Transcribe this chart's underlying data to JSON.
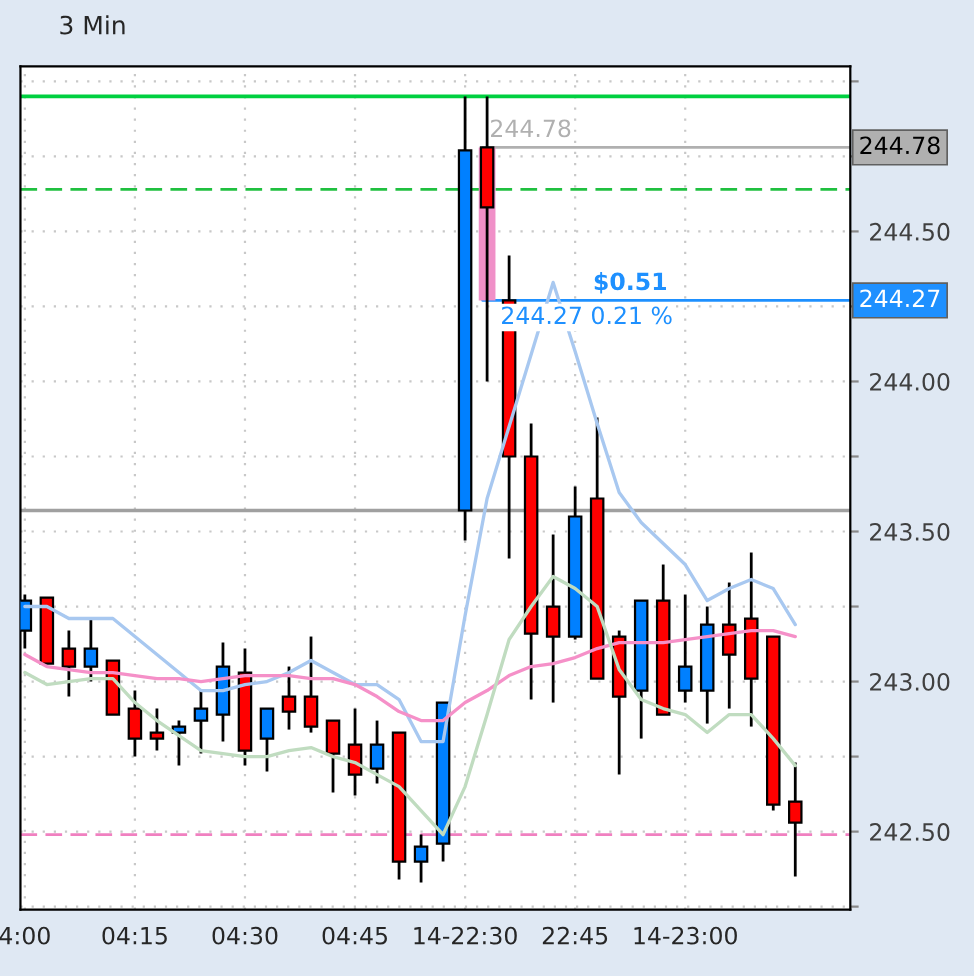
{
  "chart_data": {
    "type": "candlestick",
    "title": "3 Min",
    "categories": [
      "4:00",
      null,
      null,
      null,
      null,
      "04:15",
      null,
      null,
      null,
      null,
      "04:30",
      null,
      null,
      null,
      null,
      "04:45",
      null,
      null,
      null,
      null,
      "14-22:30",
      null,
      null,
      null,
      null,
      "22:45",
      null,
      null,
      null,
      null,
      "14-23:00",
      null,
      null,
      null,
      null,
      null
    ],
    "ohlc": [
      [
        243.17,
        243.29,
        243.11,
        243.27
      ],
      [
        243.28,
        243.28,
        243.06,
        243.06
      ],
      [
        243.11,
        243.17,
        242.95,
        243.05
      ],
      [
        243.05,
        243.21,
        243.0,
        243.11
      ],
      [
        243.07,
        243.07,
        242.89,
        242.89
      ],
      [
        242.91,
        242.97,
        242.75,
        242.81
      ],
      [
        242.83,
        242.91,
        242.77,
        242.81
      ],
      [
        242.83,
        242.87,
        242.72,
        242.85
      ],
      [
        242.87,
        242.97,
        242.76,
        242.91
      ],
      [
        242.89,
        243.13,
        242.8,
        243.05
      ],
      [
        243.03,
        243.11,
        242.72,
        242.77
      ],
      [
        242.81,
        242.91,
        242.7,
        242.91
      ],
      [
        242.95,
        243.05,
        242.84,
        242.9
      ],
      [
        242.95,
        243.15,
        242.83,
        242.85
      ],
      [
        242.87,
        242.87,
        242.63,
        242.76
      ],
      [
        242.79,
        242.91,
        242.62,
        242.69
      ],
      [
        242.71,
        242.87,
        242.66,
        242.79
      ],
      [
        242.83,
        242.83,
        242.34,
        242.4
      ],
      [
        242.4,
        242.49,
        242.33,
        242.45
      ],
      [
        242.46,
        242.93,
        242.4,
        242.93
      ],
      [
        243.57,
        244.95,
        243.47,
        244.77
      ],
      [
        244.78,
        244.95,
        244.0,
        244.58
      ],
      [
        244.27,
        244.42,
        243.41,
        243.75
      ],
      [
        243.75,
        243.86,
        242.94,
        243.16
      ],
      [
        243.25,
        243.49,
        242.93,
        243.15
      ],
      [
        243.15,
        243.65,
        243.14,
        243.55
      ],
      [
        243.61,
        243.88,
        243.01,
        243.01
      ],
      [
        243.15,
        243.17,
        242.69,
        242.95
      ],
      [
        242.97,
        243.27,
        242.81,
        243.27
      ],
      [
        243.27,
        243.39,
        242.89,
        242.89
      ],
      [
        242.97,
        243.29,
        242.93,
        243.05
      ],
      [
        242.97,
        243.25,
        242.86,
        243.19
      ],
      [
        243.19,
        243.33,
        242.91,
        243.09
      ],
      [
        243.21,
        243.43,
        242.85,
        243.01
      ],
      [
        243.15,
        243.15,
        242.57,
        242.59
      ],
      [
        242.6,
        242.73,
        242.35,
        242.53
      ]
    ],
    "colors": [
      "#0080ff",
      "#ff0000",
      "#ff0000",
      "#0080ff",
      "#ff0000",
      "#ff0000",
      "#ff0000",
      "#0080ff",
      "#0080ff",
      "#0080ff",
      "#ff0000",
      "#0080ff",
      "#ff0000",
      "#ff0000",
      "#ff0000",
      "#ff0000",
      "#0080ff",
      "#ff0000",
      "#0080ff",
      "#0080ff",
      "#0080ff",
      "#ff0000",
      "#ff0000",
      "#ff0000",
      "#ff0000",
      "#0080ff",
      "#ff0000",
      "#ff0000",
      "#0080ff",
      "#ff0000",
      "#0080ff",
      "#0080ff",
      "#ff0000",
      "#ff0000",
      "#ff0000",
      "#ff0000"
    ],
    "series": [
      {
        "type": "line",
        "color": "#a8c8f0",
        "values": [
          243.25,
          243.25,
          243.21,
          243.21,
          243.21,
          243.15,
          243.09,
          243.03,
          242.97,
          242.97,
          242.99,
          243.0,
          243.03,
          243.07,
          243.03,
          242.99,
          242.99,
          242.94,
          242.8,
          242.8,
          243.22,
          243.61,
          243.85,
          244.09,
          244.33,
          244.1,
          243.86,
          243.63,
          243.53,
          243.46,
          243.39,
          243.27,
          243.31,
          243.34,
          243.31,
          243.19
        ]
      },
      {
        "type": "line",
        "color": "#f590c8",
        "values": [
          243.09,
          243.05,
          243.04,
          243.03,
          243.03,
          243.02,
          243.01,
          243.01,
          243.0,
          243.01,
          243.02,
          243.02,
          243.02,
          243.01,
          243.01,
          242.99,
          242.95,
          242.9,
          242.87,
          242.87,
          242.93,
          242.97,
          243.02,
          243.05,
          243.06,
          243.08,
          243.11,
          243.13,
          243.13,
          243.13,
          243.14,
          243.15,
          243.16,
          243.17,
          243.17,
          243.15
        ]
      },
      {
        "type": "line",
        "color": "#c0dcc0",
        "values": [
          243.03,
          242.99,
          243.0,
          243.01,
          243.01,
          242.93,
          242.87,
          242.82,
          242.77,
          242.76,
          242.75,
          242.75,
          242.77,
          242.78,
          242.75,
          242.73,
          242.69,
          242.65,
          242.57,
          242.49,
          242.65,
          242.89,
          243.14,
          243.25,
          243.35,
          243.31,
          243.25,
          243.04,
          242.94,
          242.91,
          242.89,
          242.83,
          242.89,
          242.89,
          242.81,
          242.72
        ]
      }
    ],
    "ylim": [
      242.24,
      245.05
    ],
    "yticks": [
      {
        "value": 242.25,
        "label": null
      },
      {
        "value": 242.5,
        "label": "242.50"
      },
      {
        "value": 242.75,
        "label": null
      },
      {
        "value": 243.0,
        "label": "243.00"
      },
      {
        "value": 243.25,
        "label": null
      },
      {
        "value": 243.5,
        "label": "243.50"
      },
      {
        "value": 243.75,
        "label": null
      },
      {
        "value": 244.0,
        "label": "244.00"
      },
      {
        "value": 244.25,
        "label": null
      },
      {
        "value": 244.5,
        "label": "244.50"
      },
      {
        "value": 244.75,
        "label": null
      },
      {
        "value": 245.0,
        "label": null
      }
    ],
    "ref_lines": [
      {
        "axis": "y",
        "value": 244.95,
        "color": "#00d040",
        "line_style": "solid"
      },
      {
        "axis": "y",
        "value": 244.64,
        "color": "#20c040",
        "line_style": "dashed"
      },
      {
        "axis": "y",
        "value": 243.57,
        "color": "#a0a0a0",
        "line_style": "solid"
      },
      {
        "axis": "y",
        "value": 242.49,
        "color": "#f080c0",
        "line_style": "dashed"
      },
      {
        "axis": "y",
        "value": 244.78,
        "label": "244.78",
        "color": "#b0b0b0",
        "line_style": "solid"
      },
      {
        "axis": "y",
        "value": 244.27,
        "label": "244.27",
        "color": "#1e90ff",
        "line_style": "solid"
      }
    ],
    "annotations": [
      {
        "text": "244.78",
        "y": 244.78
      },
      {
        "text": "$0.51",
        "y": 244.27
      },
      {
        "text": "244.27 0.21 %",
        "y": 244.27
      }
    ],
    "grid": true,
    "legend": false
  }
}
